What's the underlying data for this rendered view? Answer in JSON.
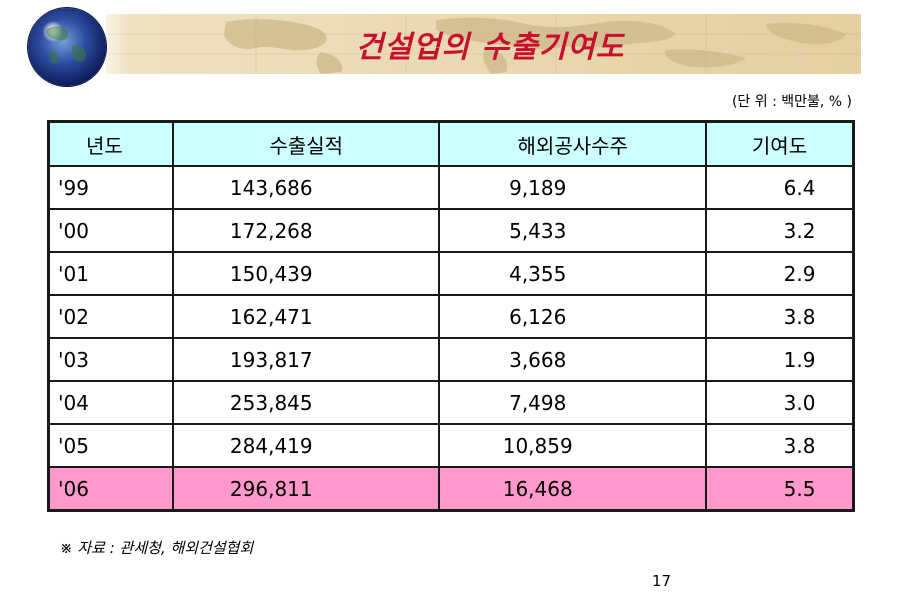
{
  "slide": {
    "title": "건설업의 수출기여도",
    "unit_note": "(단 위 : 백만불, % )",
    "source_note": "※ 자료 : 관세청, 해외건설협회",
    "page_number": "17",
    "colors": {
      "title": "#c8102e",
      "header_bg": "#ccffff",
      "highlight_row_bg": "#ff99cc",
      "banner_bg": "#e3cf9f"
    },
    "decorations": [
      "globe-icon",
      "world-map-banner"
    ]
  },
  "table": {
    "headers": [
      "년도",
      "수출실적",
      "해외공사수주",
      "기여도"
    ],
    "rows": [
      [
        "'99",
        "143,686",
        "9,189",
        "6.4"
      ],
      [
        "'00",
        "172,268",
        "5,433",
        "3.2"
      ],
      [
        "'01",
        "150,439",
        "4,355",
        "2.9"
      ],
      [
        "'02",
        "162,471",
        "6,126",
        "3.8"
      ],
      [
        "'03",
        "193,817",
        "3,668",
        "1.9"
      ],
      [
        "'04",
        "253,845",
        "7,498",
        "3.0"
      ],
      [
        "'05",
        "284,419",
        "10,859",
        "3.8"
      ],
      [
        "'06",
        "296,811",
        "16,468",
        "5.5"
      ]
    ],
    "highlighted_row": 7
  }
}
